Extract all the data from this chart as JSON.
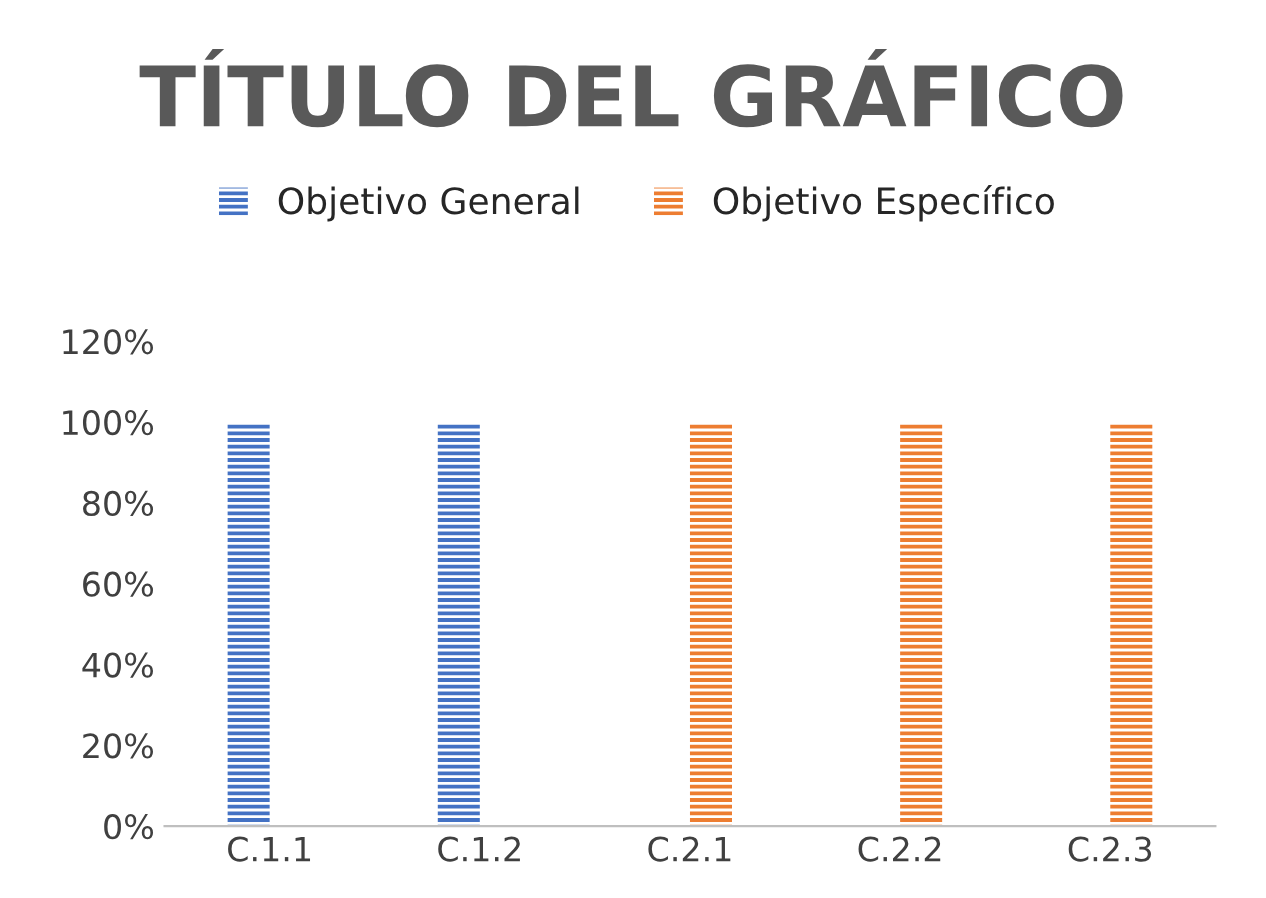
{
  "chart_data": {
    "type": "bar",
    "title": "TÍTULO DEL GRÁFICO",
    "categories": [
      "C.1.1",
      "C.1.2",
      "C.2.1",
      "C.2.2",
      "C.2.3"
    ],
    "series": [
      {
        "name": "Objetivo General",
        "color": "#4472c4",
        "values": [
          100,
          100,
          null,
          null,
          null
        ]
      },
      {
        "name": "Objetivo Específico",
        "color": "#ed7d31",
        "values": [
          null,
          null,
          100,
          100,
          100
        ]
      }
    ],
    "ylim": [
      0,
      120
    ],
    "yticks": [
      {
        "value": 0,
        "label": "0%"
      },
      {
        "value": 20,
        "label": "20%"
      },
      {
        "value": 40,
        "label": "40%"
      },
      {
        "value": 60,
        "label": "60%"
      },
      {
        "value": 80,
        "label": "80%"
      },
      {
        "value": 100,
        "label": "100%"
      },
      {
        "value": 120,
        "label": "120%"
      }
    ],
    "grid": false,
    "legend": "top"
  }
}
